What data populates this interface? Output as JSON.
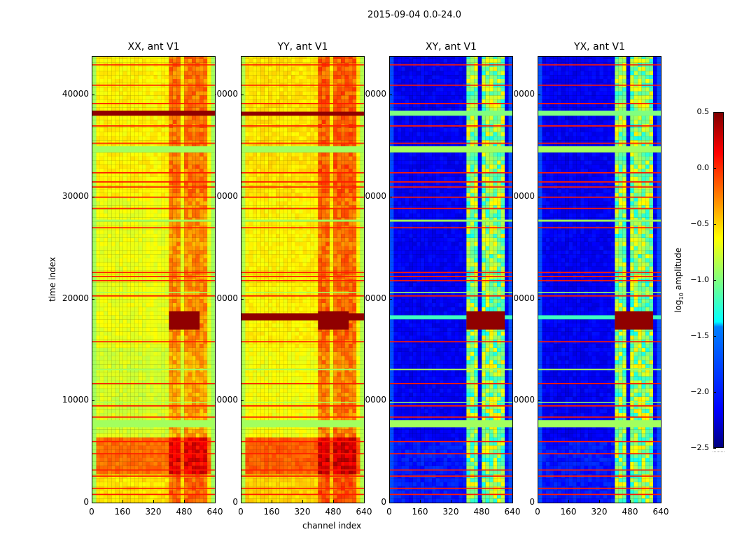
{
  "figure_title": "2015-09-04 0.0-24.0",
  "chart_data": {
    "type": "heatmap",
    "title": "2015-09-04 0.0-24.0",
    "xlabel": "channel index",
    "ylabel": "time index",
    "xlim": [
      0,
      640
    ],
    "ylim": [
      0,
      43800
    ],
    "xticks": [
      0,
      160,
      320,
      480,
      640
    ],
    "yticks": [
      0,
      10000,
      20000,
      30000,
      40000
    ],
    "colorbar": {
      "label": "log10 amplitude",
      "label_main": "log",
      "label_sub": "10",
      "label_rest": " amplitude",
      "range": [
        -2.5,
        0.5
      ],
      "ticks": [
        "0.5",
        "0.0",
        "−0.5",
        "−1.0",
        "−1.5",
        "−2.0",
        "−2.5"
      ],
      "tick_values": [
        0.5,
        0,
        -0.5,
        -1,
        -1.5,
        -2,
        -2.5
      ],
      "colormap": "jet"
    },
    "panels": [
      {
        "title": "XX, ant V1",
        "base": [
          [
            0,
            2600,
            -0.55
          ],
          [
            2600,
            6200,
            -0.2
          ],
          [
            6200,
            15000,
            -0.75
          ],
          [
            15000,
            30000,
            -0.68
          ],
          [
            30000,
            43800,
            -0.6
          ]
        ],
        "hot": {
          "mode": "add",
          "value": 0.38
        },
        "edge_value": -0.9,
        "special": [
          [
            38000,
            38500,
            0.45,
            0,
            640
          ],
          [
            17000,
            18800,
            0.45,
            400,
            560
          ]
        ]
      },
      {
        "title": "YY, ant V1",
        "base": [
          [
            0,
            2600,
            -0.5
          ],
          [
            2600,
            6200,
            -0.15
          ],
          [
            6200,
            15000,
            -0.65
          ],
          [
            15000,
            30000,
            -0.6
          ],
          [
            30000,
            43800,
            -0.55
          ]
        ],
        "hot": {
          "mode": "add",
          "value": 0.4
        },
        "edge_value": -0.85,
        "special": [
          [
            38000,
            38400,
            0.45,
            0,
            640
          ],
          [
            17900,
            18600,
            0.45,
            0,
            640
          ],
          [
            17000,
            18800,
            0.45,
            400,
            560
          ]
        ]
      },
      {
        "title": "XY, ant V1",
        "base": [
          [
            0,
            6000,
            -2.05
          ],
          [
            6000,
            43800,
            -2.15
          ]
        ],
        "hot": {
          "mode": "set",
          "value": -0.95
        },
        "edge_value": -1.9,
        "special": [
          [
            38000,
            38500,
            -1.0,
            0,
            640
          ],
          [
            18000,
            18400,
            -1.2,
            0,
            640
          ],
          [
            17000,
            18800,
            0.45,
            400,
            600
          ]
        ]
      },
      {
        "title": "YX, ant V1",
        "base": [
          [
            0,
            6000,
            -2.05
          ],
          [
            6000,
            43800,
            -2.15
          ]
        ],
        "hot": {
          "mode": "set",
          "value": -0.95
        },
        "edge_value": -1.9,
        "special": [
          [
            38000,
            38500,
            -1.0,
            0,
            640
          ],
          [
            18000,
            18400,
            -1.2,
            0,
            640
          ],
          [
            17000,
            18800,
            0.45,
            400,
            600
          ]
        ]
      }
    ],
    "hot_channels": [
      [
        400,
        470
      ],
      [
        480,
        535
      ],
      [
        545,
        600
      ]
    ],
    "flag_bands_red": [
      43000,
      41000,
      39200,
      37000,
      35300,
      32400,
      31500,
      31000,
      30000,
      28900,
      27000,
      22600,
      22200,
      21800,
      20300,
      15800,
      11700,
      9500,
      8400,
      6000,
      4800,
      3200,
      2600,
      1400,
      800
    ],
    "flag_bands_green": [
      [
        34400,
        35000
      ],
      [
        7400,
        8100
      ],
      [
        27600,
        27800
      ],
      [
        13000,
        13150
      ],
      [
        9800,
        9900
      ],
      [
        20600,
        20700
      ]
    ]
  }
}
